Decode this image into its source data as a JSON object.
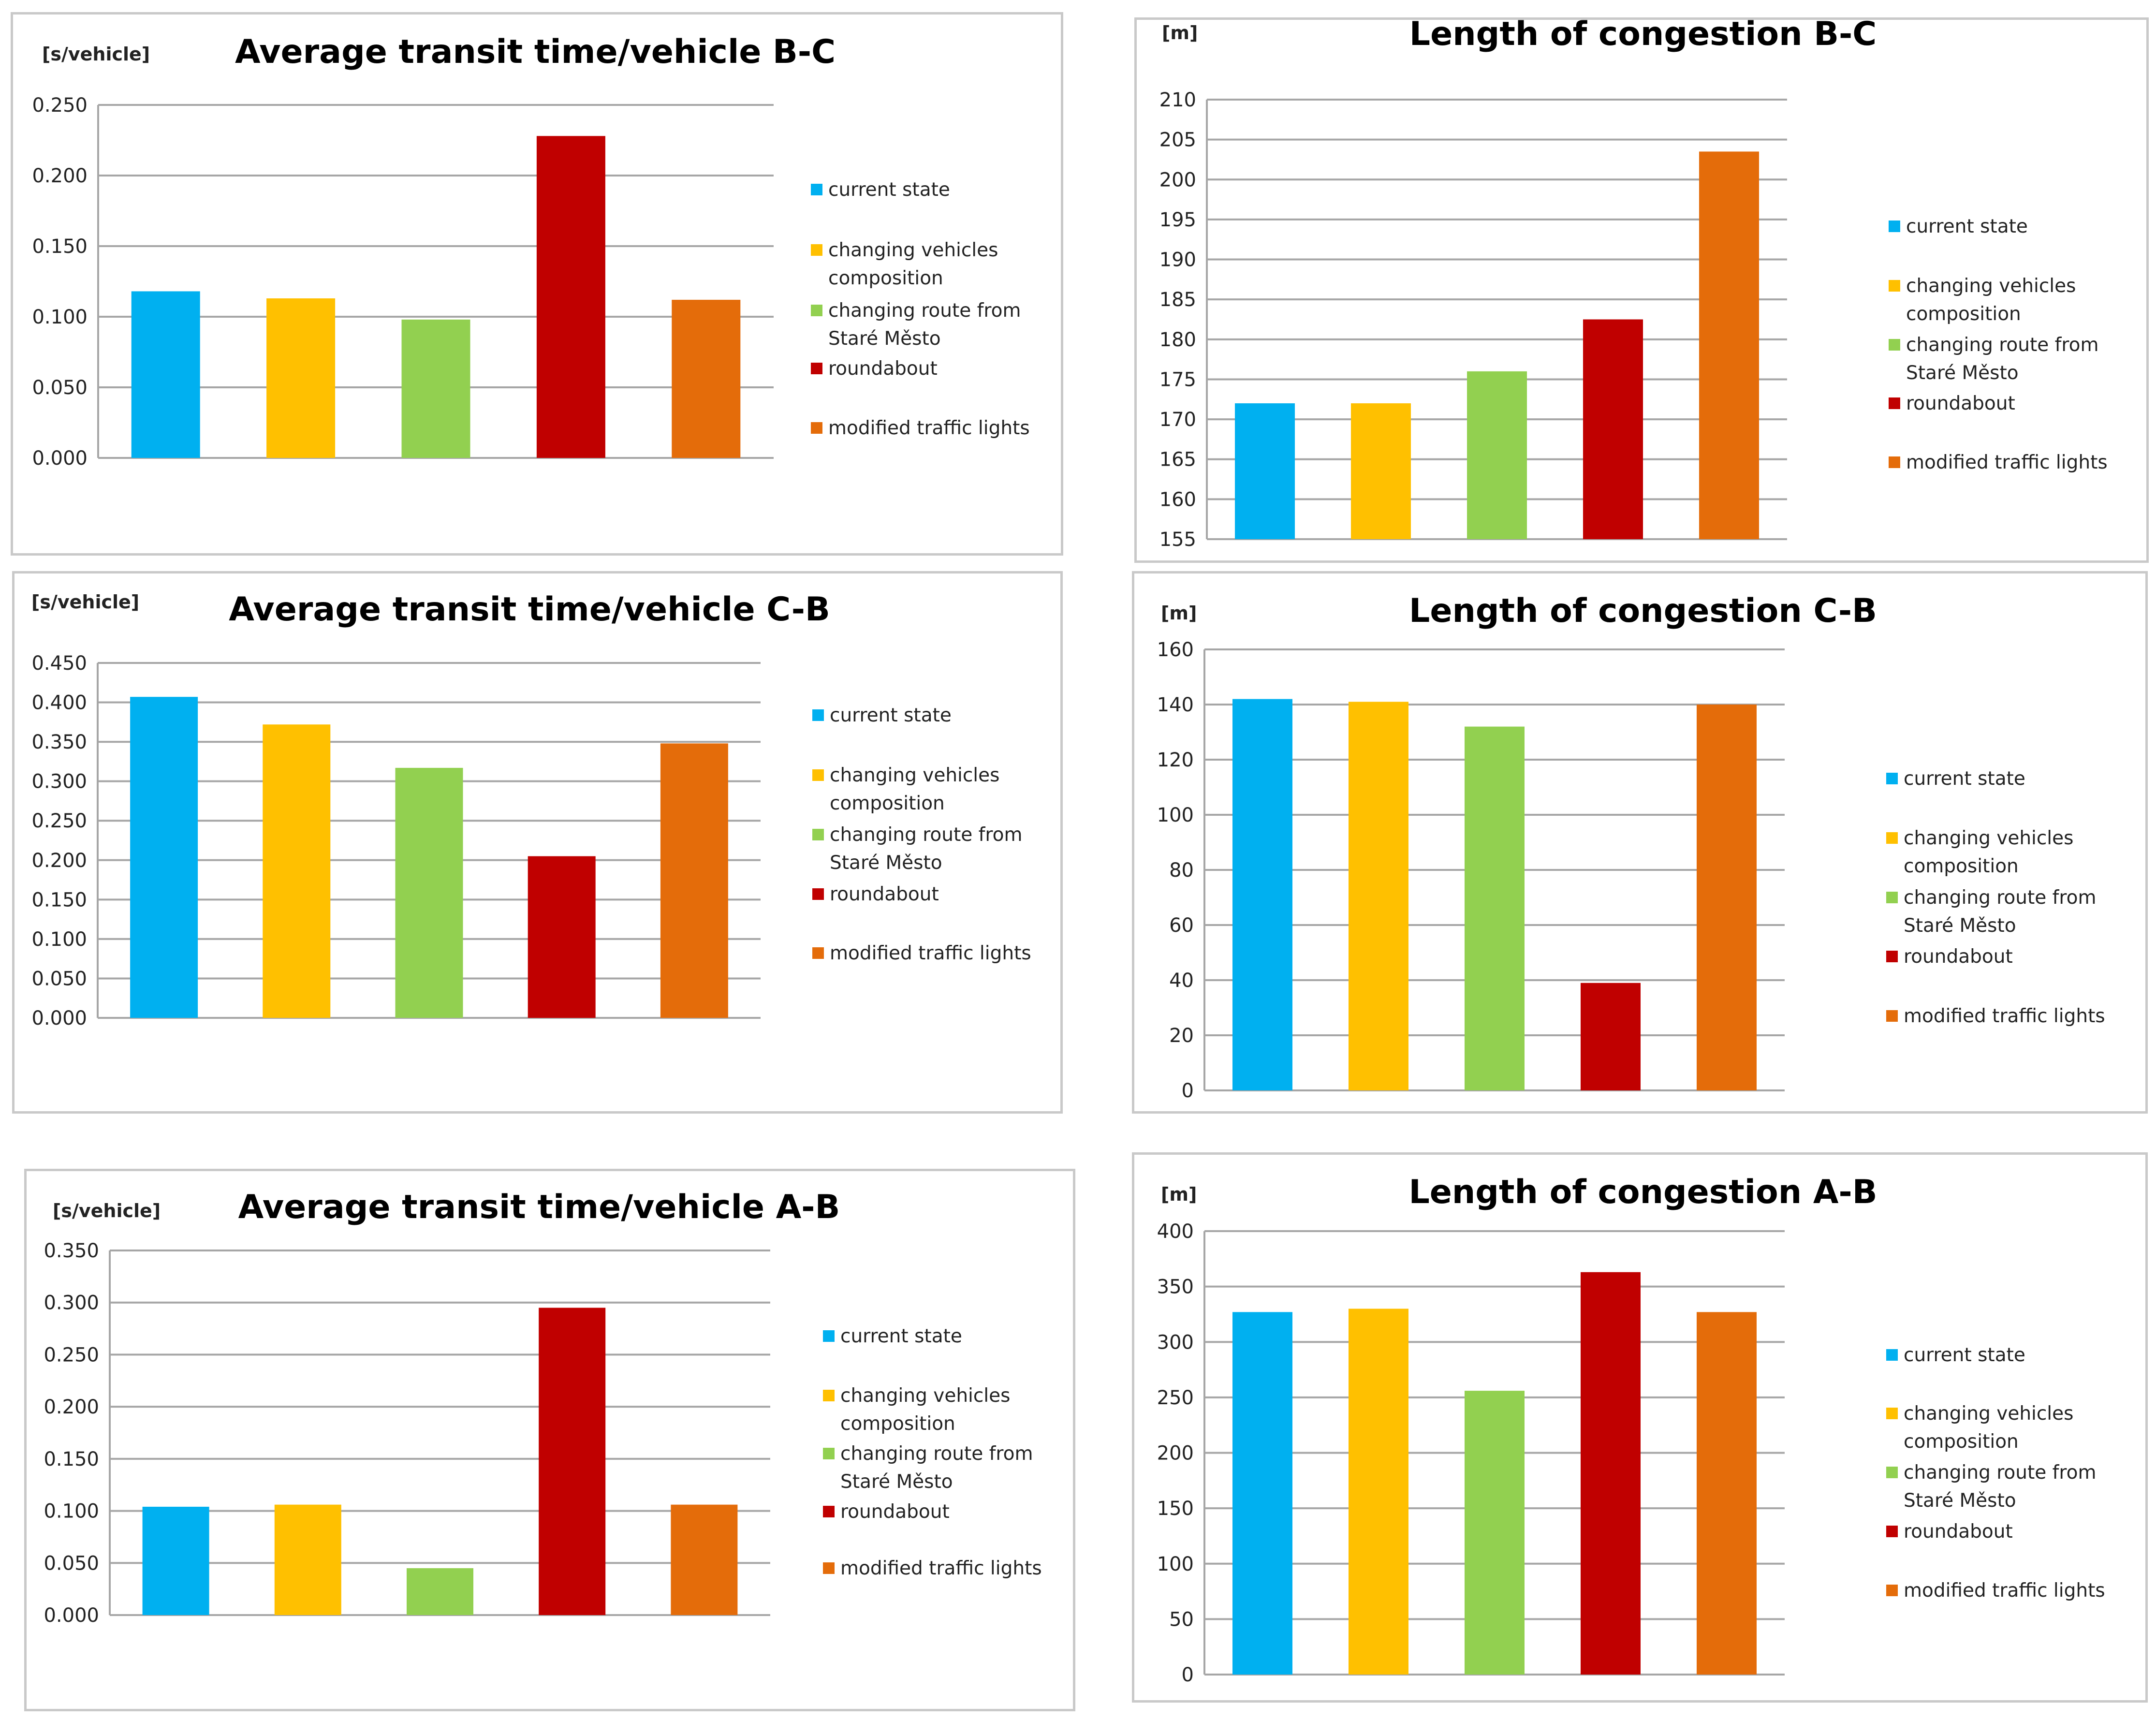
{
  "legend": [
    "current state",
    "changing vehicles composition",
    "changing route from Staré Město",
    "roundabout",
    "modified traffic lights"
  ],
  "colors": [
    "#00b0f0",
    "#ffc000",
    "#92d050",
    "#c00000",
    "#e46c0a"
  ],
  "chart_data": [
    {
      "type": "bar",
      "title": "Average transit time/vehicle B-C",
      "ylabel": "[s/vehicle]",
      "categories": [
        "current state",
        "changing vehicles composition",
        "changing route from Staré Město",
        "roundabout",
        "modified traffic lights"
      ],
      "values": [
        0.118,
        0.113,
        0.098,
        0.228,
        0.112
      ],
      "ylim": [
        0,
        0.25
      ],
      "ytick_step": 0.05,
      "tick_labels": [
        "0.000",
        "0.050",
        "0.100",
        "0.150",
        "0.200",
        "0.250"
      ],
      "grid": true,
      "legend_position": "right"
    },
    {
      "type": "bar",
      "title": "Length of congestion B-C",
      "ylabel": "[m]",
      "categories": [
        "current state",
        "changing vehicles composition",
        "changing route from Staré Město",
        "roundabout",
        "modified traffic lights"
      ],
      "values": [
        172,
        172,
        176,
        182.5,
        203.5
      ],
      "ylim": [
        155,
        210
      ],
      "ytick_step": 5,
      "tick_labels": [
        "155",
        "160",
        "165",
        "170",
        "175",
        "180",
        "185",
        "190",
        "195",
        "200",
        "205",
        "210"
      ],
      "grid": true,
      "legend_position": "right"
    },
    {
      "type": "bar",
      "title": "Average transit time/vehicle C-B",
      "ylabel": "[s/vehicle]",
      "categories": [
        "current state",
        "changing vehicles composition",
        "changing route from Staré Město",
        "roundabout",
        "modified traffic lights"
      ],
      "values": [
        0.407,
        0.372,
        0.317,
        0.205,
        0.348
      ],
      "ylim": [
        0,
        0.45
      ],
      "ytick_step": 0.05,
      "tick_labels": [
        "0.000",
        "0.050",
        "0.100",
        "0.150",
        "0.200",
        "0.250",
        "0.300",
        "0.350",
        "0.400",
        "0.450"
      ],
      "grid": true,
      "legend_position": "right"
    },
    {
      "type": "bar",
      "title": "Length of congestion C-B",
      "ylabel": "[m]",
      "categories": [
        "current state",
        "changing vehicles composition",
        "changing route from Staré Město",
        "roundabout",
        "modified traffic lights"
      ],
      "values": [
        142,
        141,
        132,
        39,
        140
      ],
      "ylim": [
        0,
        160
      ],
      "ytick_step": 20,
      "tick_labels": [
        "0",
        "20",
        "40",
        "60",
        "80",
        "100",
        "120",
        "140",
        "160"
      ],
      "grid": true,
      "legend_position": "right"
    },
    {
      "type": "bar",
      "title": "Average transit time/vehicle A-B",
      "ylabel": "[s/vehicle]",
      "categories": [
        "current state",
        "changing vehicles composition",
        "changing route from Staré Město",
        "roundabout",
        "modified traffic lights"
      ],
      "values": [
        0.104,
        0.106,
        0.045,
        0.295,
        0.106
      ],
      "ylim": [
        0,
        0.35
      ],
      "ytick_step": 0.05,
      "tick_labels": [
        "0.000",
        "0.050",
        "0.100",
        "0.150",
        "0.200",
        "0.250",
        "0.300",
        "0.350"
      ],
      "grid": true,
      "legend_position": "right"
    },
    {
      "type": "bar",
      "title": "Length of congestion A-B",
      "ylabel": "[m]",
      "categories": [
        "current state",
        "changing vehicles composition",
        "changing route from Staré Město",
        "roundabout",
        "modified traffic lights"
      ],
      "values": [
        327,
        330,
        256,
        363,
        327
      ],
      "ylim": [
        0,
        400
      ],
      "ytick_step": 50,
      "tick_labels": [
        "0",
        "50",
        "100",
        "150",
        "200",
        "250",
        "300",
        "350",
        "400"
      ],
      "grid": true,
      "legend_position": "right"
    }
  ]
}
